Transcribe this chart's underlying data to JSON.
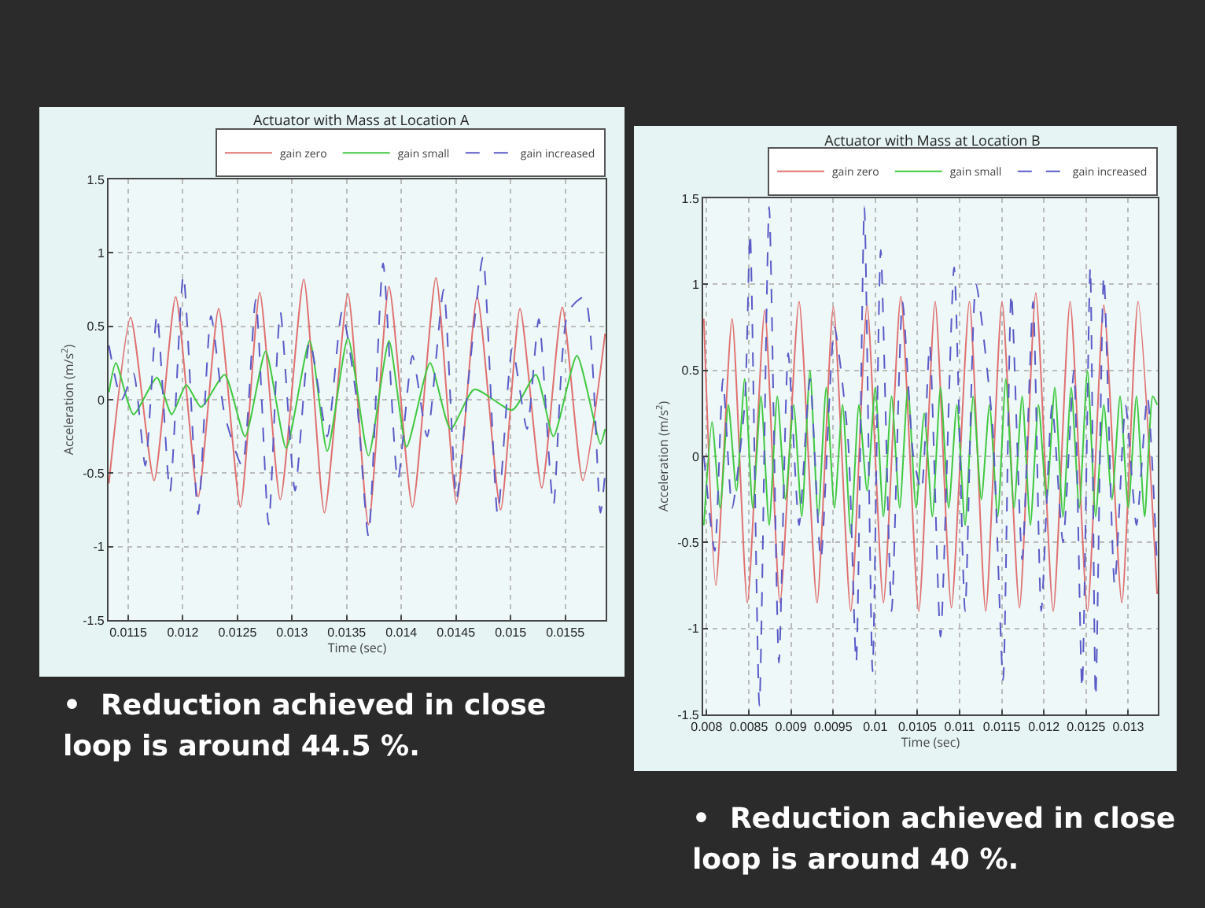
{
  "chart_data": [
    {
      "type": "line",
      "title": "Actuator with Mass at Location A",
      "xlabel": "Time (sec)",
      "ylabel": "Acceleration (m/s$^{2}$)",
      "xlim": [
        0.01132,
        0.01587
      ],
      "xticks": [
        0.0115,
        0.012,
        0.0125,
        0.013,
        0.0135,
        0.014,
        0.0145,
        0.015,
        0.0155
      ],
      "ylim": [
        -1.5,
        1.5
      ],
      "yticks": [
        -1.5,
        -1,
        -0.5,
        0,
        0.5,
        1,
        1.5
      ],
      "grid": true,
      "legend": "top right",
      "annotations": [
        "•  Reduction achieved in close loop is around 44.5 %."
      ],
      "series": [
        {
          "name": "gain zero",
          "color": "#e07070",
          "line_style": "solid",
          "x": [
            0.011323,
            0.011522,
            0.011737,
            0.011935,
            0.01214,
            0.012328,
            0.012527,
            0.012704,
            0.012892,
            0.013107,
            0.013296,
            0.013511,
            0.013699,
            0.013887,
            0.014102,
            0.014317,
            0.014505,
            0.014694,
            0.014909,
            0.015086,
            0.015285,
            0.015473,
            0.015661,
            0.015865
          ],
          "values": [
            -0.57,
            0.56,
            -0.55,
            0.7,
            -0.66,
            0.62,
            -0.73,
            0.73,
            -0.68,
            0.82,
            -0.77,
            0.72,
            -0.85,
            0.77,
            -0.73,
            0.83,
            -0.7,
            0.7,
            -0.75,
            0.62,
            -0.6,
            0.63,
            -0.55,
            0.45
          ]
        },
        {
          "name": "gain small",
          "color": "#40c840",
          "line_style": "solid",
          "x": [
            0.011323,
            0.011387,
            0.011548,
            0.011763,
            0.011898,
            0.012032,
            0.012167,
            0.012382,
            0.01257,
            0.012758,
            0.012946,
            0.013161,
            0.013322,
            0.013511,
            0.013699,
            0.013887,
            0.014048,
            0.014263,
            0.014451,
            0.014667,
            0.015016,
            0.015231,
            0.015392,
            0.015607,
            0.015822,
            0.015865
          ],
          "values": [
            0.05,
            0.25,
            -0.1,
            0.15,
            -0.1,
            0.1,
            -0.05,
            0.17,
            -0.25,
            0.33,
            -0.33,
            0.4,
            -0.35,
            0.42,
            -0.38,
            0.4,
            -0.32,
            0.25,
            -0.2,
            0.07,
            -0.07,
            0.17,
            -0.25,
            0.3,
            -0.3,
            -0.2
          ]
        },
        {
          "name": "gain increased",
          "color": "#5a5ac8",
          "line_style": "dashed",
          "x": [
            0.011323,
            0.011441,
            0.011548,
            0.011656,
            0.011763,
            0.011882,
            0.012005,
            0.01214,
            0.012258,
            0.012382,
            0.012543,
            0.012667,
            0.012785,
            0.012892,
            0.013027,
            0.013161,
            0.013322,
            0.013457,
            0.013591,
            0.013699,
            0.013833,
            0.013968,
            0.014102,
            0.014236,
            0.014387,
            0.014505,
            0.014623,
            0.014747,
            0.014882,
            0.015016,
            0.01515,
            0.015258,
            0.015392,
            0.015527,
            0.015677,
            0.015822,
            0.015865
          ],
          "values": [
            0.37,
            0,
            0.18,
            -0.45,
            0.58,
            -0.63,
            0.85,
            -0.78,
            0.57,
            -0.1,
            -0.45,
            0.68,
            -0.85,
            0.6,
            -0.62,
            0.4,
            -0.25,
            0.6,
            0,
            -0.93,
            0.93,
            -0.55,
            0.3,
            -0.25,
            0.75,
            -0.68,
            0.2,
            0.97,
            -0.78,
            0.35,
            -0.2,
            0.55,
            -0.72,
            0.6,
            0.7,
            -0.77,
            -0.5
          ]
        }
      ]
    },
    {
      "type": "line",
      "title": "Actuator with Mass at Location B",
      "xlabel": "Time (sec)",
      "ylabel": "Acceleration (m/s$^{2}$)",
      "xlim": [
        0.00796,
        0.01335
      ],
      "xticks": [
        0.008,
        0.0085,
        0.009,
        0.0095,
        0.01,
        0.0105,
        0.011,
        0.0115,
        0.012,
        0.0125,
        0.013
      ],
      "ylim": [
        -1.5,
        1.5
      ],
      "yticks": [
        -1.5,
        -1,
        -0.5,
        0,
        0.5,
        1,
        1.5
      ],
      "grid": true,
      "legend": "top right",
      "annotations": [
        "•  Reduction achieved in close loop is around 40 %."
      ],
      "series": [
        {
          "name": "gain zero",
          "color": "#e07070",
          "line_style": "solid",
          "x": [
            0.007968,
            0.00811,
            0.008303,
            0.008484,
            0.00869,
            0.008871,
            0.009097,
            0.00931,
            0.009503,
            0.00971,
            0.009903,
            0.010097,
            0.010303,
            0.010516,
            0.01071,
            0.010903,
            0.011116,
            0.01131,
            0.011503,
            0.01171,
            0.011903,
            0.01211,
            0.01231,
            0.012516,
            0.01271,
            0.012923,
            0.013116,
            0.013342
          ],
          "values": [
            0.8,
            -0.75,
            0.8,
            -0.85,
            0.85,
            -0.85,
            0.9,
            -0.85,
            0.87,
            -0.9,
            0.88,
            -0.85,
            0.93,
            -0.9,
            0.9,
            -0.88,
            0.9,
            -0.9,
            0.9,
            -0.88,
            0.95,
            -0.9,
            0.9,
            -0.9,
            0.88,
            -0.85,
            0.9,
            -0.8
          ]
        },
        {
          "name": "gain small",
          "color": "#40c840",
          "line_style": "solid",
          "x": [
            0.007968,
            0.008065,
            0.008161,
            0.008258,
            0.008355,
            0.008452,
            0.008548,
            0.008645,
            0.008742,
            0.008839,
            0.008935,
            0.009032,
            0.009129,
            0.009226,
            0.009323,
            0.009419,
            0.009516,
            0.009613,
            0.00971,
            0.009806,
            0.009903,
            0.01,
            0.010097,
            0.010194,
            0.01029,
            0.010387,
            0.010484,
            0.010581,
            0.010677,
            0.010774,
            0.010871,
            0.010968,
            0.011065,
            0.011161,
            0.011258,
            0.011355,
            0.011452,
            0.011548,
            0.011645,
            0.011742,
            0.011839,
            0.011935,
            0.012032,
            0.012129,
            0.012226,
            0.012323,
            0.012419,
            0.012516,
            0.012613,
            0.01271,
            0.012806,
            0.012903,
            0.013,
            0.013097,
            0.013194,
            0.01329,
            0.013342
          ],
          "values": [
            -0.4,
            0.2,
            -0.3,
            0.3,
            -0.2,
            0.45,
            -0.3,
            0.35,
            -0.4,
            0.35,
            -0.25,
            0.3,
            -0.35,
            0.5,
            -0.35,
            0.4,
            -0.3,
            0.3,
            -0.45,
            0.3,
            -0.2,
            0.4,
            -0.35,
            0.35,
            -0.3,
            0.4,
            -0.3,
            0.25,
            -0.35,
            0.4,
            -0.3,
            0.3,
            -0.4,
            0.35,
            -0.25,
            0.3,
            -0.35,
            0.45,
            -0.3,
            0.35,
            -0.4,
            0.3,
            -0.25,
            0.4,
            -0.35,
            0.4,
            -0.3,
            0.5,
            -0.35,
            0.3,
            -0.25,
            0.35,
            -0.3,
            0.35,
            -0.35,
            0.35,
            0.3
          ]
        },
        {
          "name": "gain increased",
          "color": "#5a5ac8",
          "line_style": "dashed",
          "x": [
            0.007968,
            0.008097,
            0.008194,
            0.008303,
            0.008452,
            0.008516,
            0.008626,
            0.008742,
            0.008858,
            0.008968,
            0.009097,
            0.009226,
            0.009355,
            0.009516,
            0.009677,
            0.009774,
            0.009871,
            0.009968,
            0.010065,
            0.010194,
            0.010323,
            0.010452,
            0.010548,
            0.010645,
            0.010774,
            0.010935,
            0.011065,
            0.011194,
            0.011387,
            0.011516,
            0.011613,
            0.011742,
            0.011871,
            0.011968,
            0.012097,
            0.012226,
            0.012355,
            0.012452,
            0.012549,
            0.012613,
            0.01271,
            0.012839,
            0.012968,
            0.013097,
            0.013226,
            0.013342
          ],
          "values": [
            0,
            -0.55,
            0.45,
            -0.3,
            0.3,
            1.3,
            -1.45,
            1.45,
            -1.2,
            0.6,
            -0.4,
            0.45,
            -0.6,
            0.75,
            0.1,
            -1.2,
            1.45,
            -1.25,
            1.2,
            -0.9,
            0.9,
            0,
            -0.2,
            0.65,
            -1.05,
            1.1,
            -0.9,
            1,
            0.2,
            -1.3,
            0.95,
            -0.6,
            0.9,
            -0.9,
            0.3,
            -0.5,
            0.5,
            -1.35,
            1.1,
            -1.4,
            1.05,
            -0.75,
            0.3,
            -0.4,
            0.35,
            -0.65
          ]
        }
      ]
    }
  ]
}
